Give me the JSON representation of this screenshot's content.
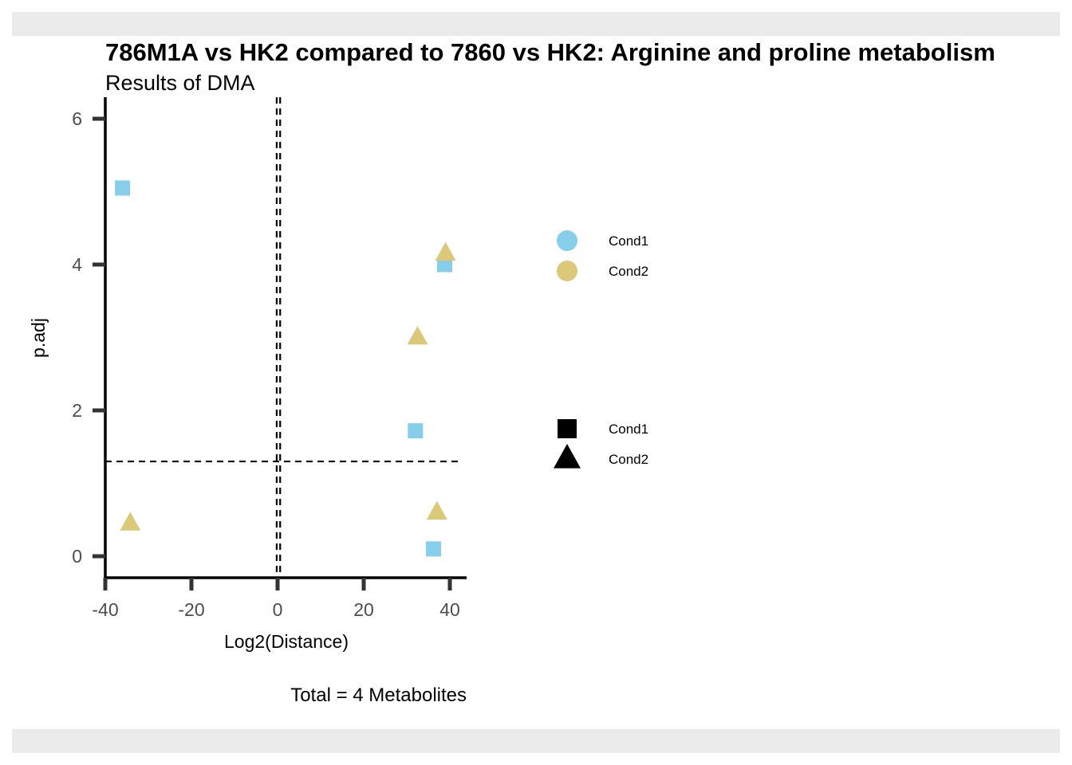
{
  "chart_data": {
    "type": "scatter",
    "title": "786M1A vs HK2 compared to 7860 vs HK2: Arginine and proline metabolism",
    "subtitle": "Results of DMA",
    "xlabel": "Log2(Distance)",
    "ylabel": "p.adj",
    "caption": "Total = 4 Metabolites",
    "xlim": [
      -40,
      42
    ],
    "ylim": [
      -0.3,
      6.2
    ],
    "x_ticks": [
      -40,
      -20,
      0,
      20,
      40
    ],
    "x_tick_labels": [
      "-40",
      "-20",
      "0",
      "20",
      "40"
    ],
    "y_ticks": [
      0,
      2,
      4,
      6
    ],
    "y_tick_labels": [
      "0",
      "2",
      "4",
      "6"
    ],
    "reference_lines": {
      "vertical": [
        -0.2,
        0.6
      ],
      "horizontal": [
        1.3
      ]
    },
    "grid": false,
    "legend_position": "right",
    "colors": {
      "Cond1": "#87ceeb",
      "Cond2": "#dbc879"
    },
    "legends": [
      {
        "kind": "color",
        "items": [
          {
            "label": "Cond1",
            "color": "#87ceeb"
          },
          {
            "label": "Cond2",
            "color": "#dbc879"
          }
        ]
      },
      {
        "kind": "shape",
        "items": [
          {
            "label": "Cond1",
            "shape": "square"
          },
          {
            "label": "Cond2",
            "shape": "triangle"
          }
        ]
      }
    ],
    "series": [
      {
        "name": "Cond1",
        "color": "#87ceeb",
        "shape": "square",
        "points": [
          {
            "x": -36,
            "y": 5.05
          },
          {
            "x": 38.8,
            "y": 4.0
          },
          {
            "x": 32,
            "y": 1.72
          },
          {
            "x": 36.2,
            "y": 0.1
          }
        ]
      },
      {
        "name": "Cond2",
        "color": "#dbc879",
        "shape": "triangle",
        "points": [
          {
            "x": -34.2,
            "y": 0.45
          },
          {
            "x": 39,
            "y": 4.15
          },
          {
            "x": 32.5,
            "y": 3.0
          },
          {
            "x": 37,
            "y": 0.6
          }
        ]
      }
    ]
  },
  "background": {
    "strip_color": "#ebebeb"
  }
}
